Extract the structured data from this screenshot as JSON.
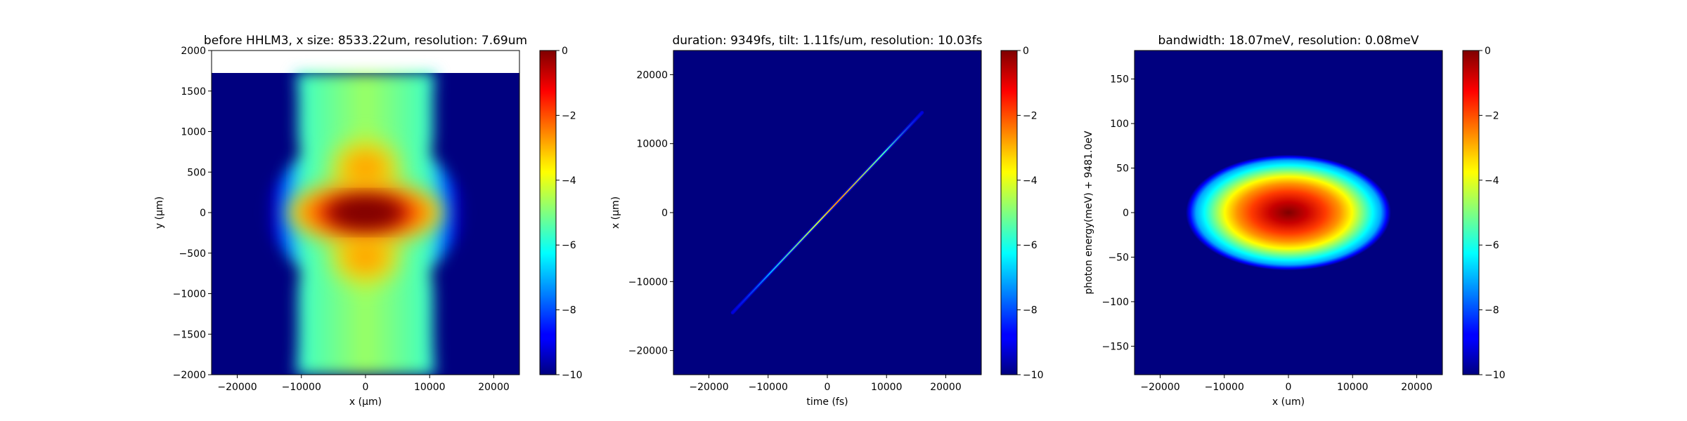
{
  "chart_data": [
    {
      "type": "heatmap",
      "title": "before HHLM3, x size: 8533.22um, resolution: 7.69um",
      "xlabel": "x (μm)",
      "ylabel": "y (μm)",
      "xlim": [
        -24000,
        24000
      ],
      "ylim": [
        -2000,
        2000
      ],
      "xticks": [
        -20000,
        -10000,
        0,
        10000,
        20000
      ],
      "xtick_labels": [
        "−20000",
        "−10000",
        "0",
        "10000",
        "20000"
      ],
      "yticks": [
        -2000,
        -1500,
        -1000,
        -500,
        0,
        500,
        1000,
        1500,
        2000
      ],
      "ytick_labels": [
        "−2000",
        "−1500",
        "−1000",
        "−500",
        "0",
        "500",
        "1000",
        "1500",
        "2000"
      ],
      "data_extent_y": [
        -2000,
        1730
      ],
      "description_of_field": "log intensity; peak 0 at (0,0); lobed profile; bright core |x|<5000, |y|<300",
      "colorbar": {
        "range": [
          -10,
          0
        ],
        "ticks": [
          -10,
          -8,
          -6,
          -4,
          -2,
          0
        ],
        "tick_labels": [
          "−10",
          "−8",
          "−6",
          "−4",
          "−2",
          "0"
        ],
        "colormap": "jet"
      }
    },
    {
      "type": "heatmap",
      "title": "duration: 9349fs, tilt: 1.11fs/um, resolution: 10.03fs",
      "xlabel": "time (fs)",
      "ylabel": "x (μm)",
      "xlim": [
        -26000,
        26000
      ],
      "ylim": [
        -23500,
        23500
      ],
      "xticks": [
        -20000,
        -10000,
        0,
        10000,
        20000
      ],
      "xtick_labels": [
        "−20000",
        "−10000",
        "0",
        "10000",
        "20000"
      ],
      "yticks": [
        -20000,
        -10000,
        0,
        10000,
        20000
      ],
      "ytick_labels": [
        "−20000",
        "−10000",
        "0",
        "10000",
        "20000"
      ],
      "line_from": [
        -16000,
        -14500
      ],
      "line_to": [
        16000,
        14500
      ],
      "colorbar": {
        "range": [
          -10,
          0
        ],
        "ticks": [
          -10,
          -8,
          -6,
          -4,
          -2,
          0
        ],
        "tick_labels": [
          "−10",
          "−8",
          "−6",
          "−4",
          "−2",
          "0"
        ],
        "colormap": "jet"
      }
    },
    {
      "type": "heatmap",
      "title": "bandwidth: 18.07meV, resolution: 0.08meV",
      "xlabel": "x (um)",
      "ylabel": "photon energy(meV) + 9481.0eV",
      "xlim": [
        -24000,
        24000
      ],
      "ylim": [
        -182,
        182
      ],
      "xticks": [
        -20000,
        -10000,
        0,
        10000,
        20000
      ],
      "xtick_labels": [
        "−20000",
        "−10000",
        "0",
        "10000",
        "20000"
      ],
      "yticks": [
        -150,
        -100,
        -50,
        0,
        50,
        100,
        150
      ],
      "ytick_labels": [
        "−150",
        "−100",
        "−50",
        "0",
        "50",
        "100",
        "150"
      ],
      "ellipse_semi_axes": [
        16000,
        65
      ],
      "colorbar": {
        "range": [
          -10,
          0
        ],
        "ticks": [
          -10,
          -8,
          -6,
          -4,
          -2,
          0
        ],
        "tick_labels": [
          "−10",
          "−8",
          "−6",
          "−4",
          "−2",
          "0"
        ],
        "colormap": "jet"
      }
    }
  ],
  "colors": {
    "background_low": "#00007f",
    "jet_mid": "#80ff80",
    "jet_high": "#7f0000"
  }
}
